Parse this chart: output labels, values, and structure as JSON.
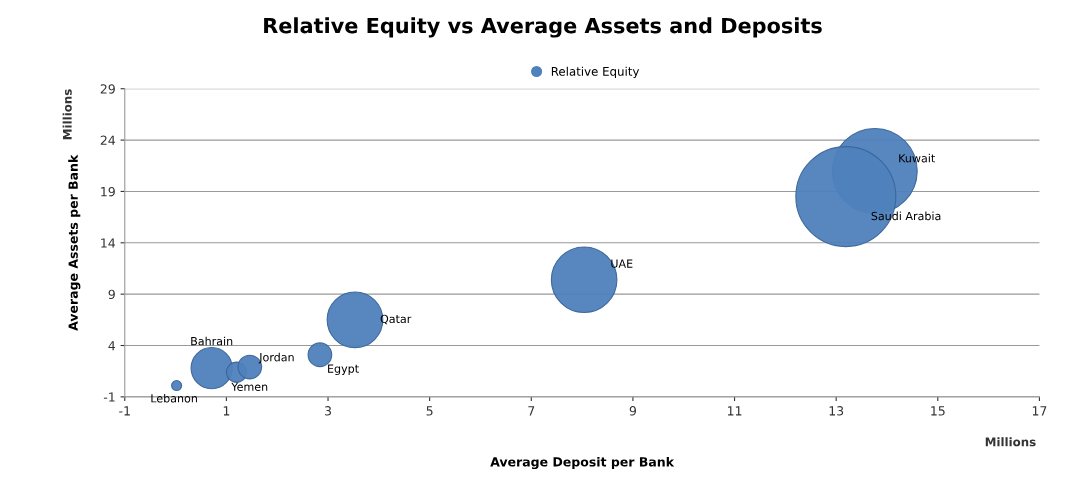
{
  "chart_data": {
    "type": "bubble",
    "title": "Relative Equity vs Average Assets and Deposits",
    "xlabel": "Average Deposit per Bank",
    "ylabel": "Average Assets per Bank",
    "x": [
      0.02,
      0.71,
      1.2,
      1.46,
      2.84,
      3.53,
      8.04,
      13.76,
      13.19
    ],
    "series": [
      {
        "name": "Relative Equity",
        "color": "#4f81bd",
        "values": [
          0.1,
          1.8,
          1.4,
          1.9,
          3.1,
          6.5,
          10.4,
          21.0,
          18.5
        ],
        "sizes": [
          0.01,
          0.17,
          0.041,
          0.056,
          0.056,
          0.31,
          0.43,
          0.72,
          1
        ]
      }
    ],
    "annotations": [
      "Millions",
      "Millions",
      {
        "text": "Lebanon",
        "x": 0.02,
        "y": 0.1
      },
      {
        "text": "Bahrain",
        "x": 0.71,
        "y": 1.8
      },
      {
        "text": "Yemen",
        "x": 1.2,
        "y": 1.4
      },
      {
        "text": "Jordan",
        "x": 1.46,
        "y": 1.9
      },
      {
        "text": "Egypt",
        "x": 2.84,
        "y": 3.1
      },
      {
        "text": "Qatar",
        "x": 3.53,
        "y": 6.5
      },
      {
        "text": "UAE",
        "x": 8.04,
        "y": 10.4
      },
      {
        "text": "Kuwait",
        "x": 13.76,
        "y": 21.0
      },
      {
        "text": "Saudi Arabia",
        "x": 13.19,
        "y": 18.5
      }
    ],
    "xlim": [
      -1,
      17
    ],
    "xticks": [
      -1,
      1,
      3,
      5,
      7,
      9,
      11,
      13,
      15,
      17
    ],
    "ylim": [
      -1,
      29
    ],
    "yticks": [
      -1,
      4,
      9,
      14,
      19,
      24,
      29
    ],
    "grid": "y",
    "legend": "top"
  }
}
